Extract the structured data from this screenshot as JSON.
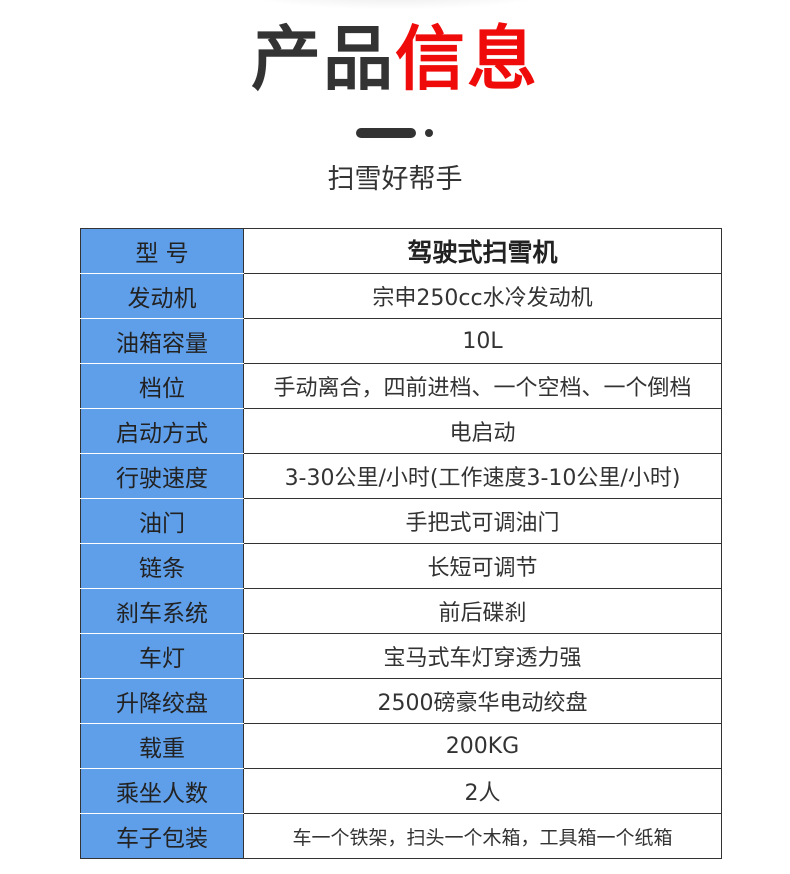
{
  "header": {
    "title_part1": "产品",
    "title_part2": "信息",
    "subtitle": "扫雪好帮手",
    "accent_color": "#f00b0b",
    "label_bg_color": "#5f9ee8"
  },
  "specs": [
    {
      "label": "型 号",
      "value": "驾驶式扫雪机"
    },
    {
      "label": "发动机",
      "value": "宗申250cc水冷发动机"
    },
    {
      "label": "油箱容量",
      "value": "10L"
    },
    {
      "label": "档位",
      "value": "手动离合，四前进档、一个空档、一个倒档"
    },
    {
      "label": "启动方式",
      "value": "电启动"
    },
    {
      "label": "行驶速度",
      "value": "3-30公里/小时(工作速度3-10公里/小时)"
    },
    {
      "label": "油门",
      "value": "手把式可调油门"
    },
    {
      "label": "链条",
      "value": "长短可调节"
    },
    {
      "label": "刹车系统",
      "value": "前后碟刹"
    },
    {
      "label": "车灯",
      "value": "宝马式车灯穿透力强"
    },
    {
      "label": "升降绞盘",
      "value": "2500磅豪华电动绞盘"
    },
    {
      "label": "载重",
      "value": "200KG"
    },
    {
      "label": "乘坐人数",
      "value": "2人"
    },
    {
      "label": "车子包装",
      "value": "车一个铁架，扫头一个木箱，工具箱一个纸箱"
    }
  ]
}
